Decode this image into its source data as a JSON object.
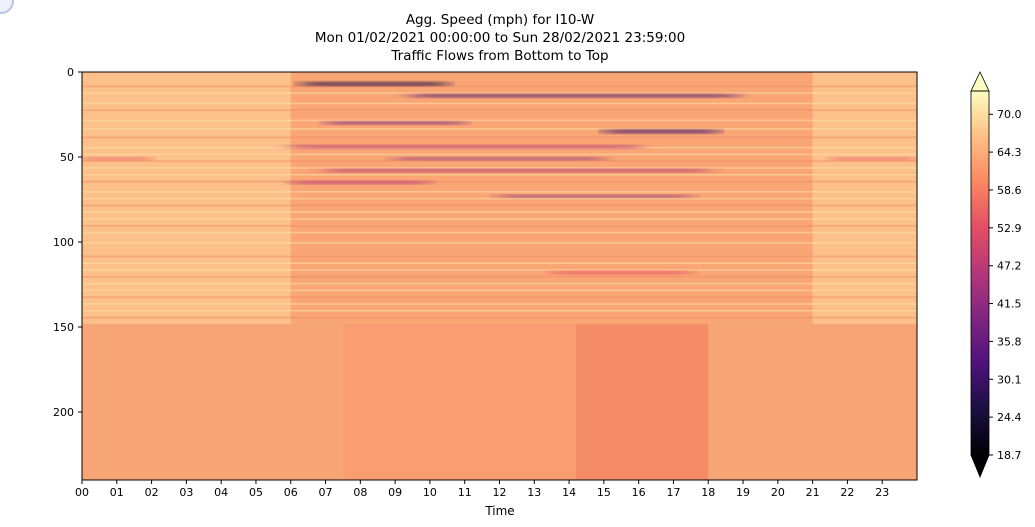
{
  "chart_data": {
    "type": "heatmap",
    "title": [
      "Agg. Speed (mph) for I10-W",
      "Mon 01/02/2021 00:00:00 to Sun 28/02/2021 23:59:00",
      "Traffic Flows from Bottom to Top"
    ],
    "xlabel": "Time",
    "ylabel": "",
    "x_ticks": [
      "00",
      "01",
      "02",
      "03",
      "04",
      "05",
      "06",
      "07",
      "08",
      "09",
      "10",
      "11",
      "12",
      "13",
      "14",
      "15",
      "16",
      "17",
      "18",
      "19",
      "20",
      "21",
      "22",
      "23"
    ],
    "x_range_hours": [
      0,
      24
    ],
    "y_ticks": [
      0,
      50,
      100,
      150,
      200
    ],
    "y_range": [
      0,
      240
    ],
    "y_inverted": true,
    "colormap": "magma",
    "colorbar": {
      "ticks": [
        18.7,
        24.4,
        30.1,
        35.8,
        41.5,
        47.2,
        52.9,
        58.6,
        64.3,
        70.0
      ],
      "tick_labels": [
        "18.7",
        "24.4",
        "30.1",
        "35.8",
        "41.5",
        "47.2",
        "52.9",
        "58.6",
        "64.3",
        "70.0"
      ],
      "vmin": 18.7,
      "vmax": 73.5,
      "extend": "both"
    },
    "grid": false
  }
}
